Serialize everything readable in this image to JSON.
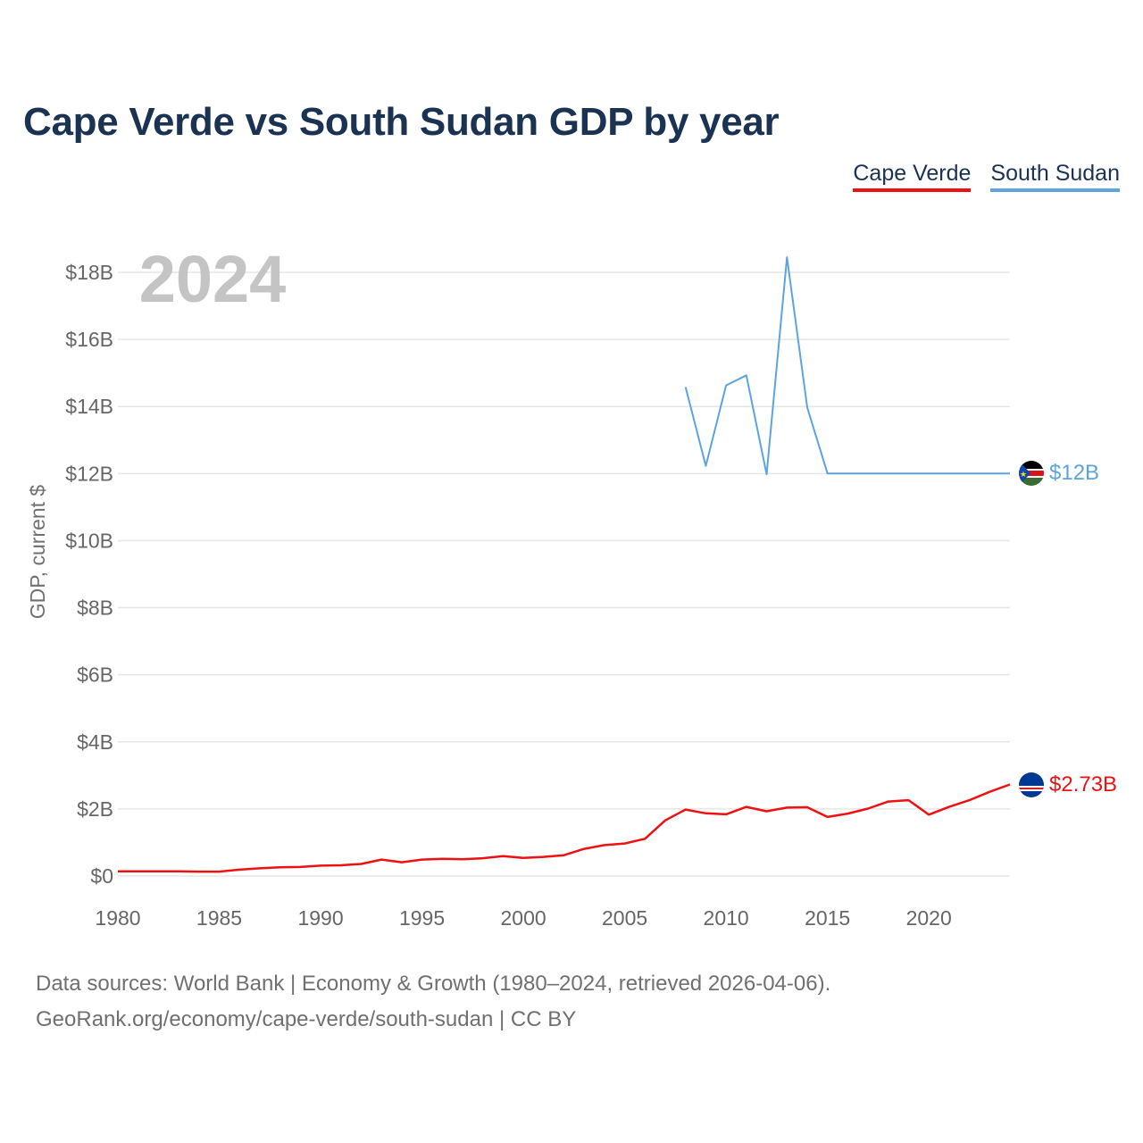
{
  "title": "Cape Verde vs South Sudan GDP by year",
  "legend": [
    {
      "name": "Cape Verde",
      "color": "#ee1111"
    },
    {
      "name": "South Sudan",
      "color": "#5ba4e0"
    }
  ],
  "year_label": "2024",
  "ylabel": "GDP, current $",
  "footer": {
    "line1": "Data sources: World Bank | Economy & Growth (1980–2024, retrieved 2026-04-06).",
    "line2": "GeoRank.org/economy/cape-verde/south-sudan | CC BY"
  },
  "chart_data": {
    "type": "line",
    "title": "Cape Verde vs South Sudan GDP by year",
    "xlabel": "",
    "ylabel": "GDP, current $",
    "xlim": [
      1980,
      2024
    ],
    "ylim": [
      0,
      18
    ],
    "y_unit": "billion USD",
    "x_ticks": [
      1980,
      1985,
      1990,
      1995,
      2000,
      2005,
      2010,
      2015,
      2020
    ],
    "y_ticks": [
      {
        "value": 0,
        "label": "$0"
      },
      {
        "value": 2,
        "label": "$2B"
      },
      {
        "value": 4,
        "label": "$4B"
      },
      {
        "value": 6,
        "label": "$6B"
      },
      {
        "value": 8,
        "label": "$8B"
      },
      {
        "value": 10,
        "label": "$10B"
      },
      {
        "value": 12,
        "label": "$12B"
      },
      {
        "value": 14,
        "label": "$14B"
      },
      {
        "value": 16,
        "label": "$16B"
      },
      {
        "value": 18,
        "label": "$18B"
      }
    ],
    "grid": true,
    "series": [
      {
        "name": "Cape Verde",
        "color": "#ee1111",
        "end_label": "$2.73B",
        "flag": "cape-verde-flag-icon",
        "x": [
          1980,
          1981,
          1982,
          1983,
          1984,
          1985,
          1986,
          1987,
          1988,
          1989,
          1990,
          1991,
          1992,
          1993,
          1994,
          1995,
          1996,
          1997,
          1998,
          1999,
          2000,
          2001,
          2002,
          2003,
          2004,
          2005,
          2006,
          2007,
          2008,
          2009,
          2010,
          2011,
          2012,
          2013,
          2014,
          2015,
          2016,
          2017,
          2018,
          2019,
          2020,
          2021,
          2022,
          2023,
          2024
        ],
        "values": [
          0.14,
          0.14,
          0.14,
          0.14,
          0.13,
          0.13,
          0.19,
          0.23,
          0.26,
          0.27,
          0.31,
          0.32,
          0.36,
          0.49,
          0.41,
          0.49,
          0.51,
          0.5,
          0.53,
          0.59,
          0.54,
          0.57,
          0.62,
          0.81,
          0.92,
          0.97,
          1.11,
          1.66,
          1.98,
          1.87,
          1.84,
          2.06,
          1.93,
          2.04,
          2.05,
          1.76,
          1.86,
          2.01,
          2.22,
          2.26,
          1.83,
          2.06,
          2.26,
          2.51,
          2.73
        ]
      },
      {
        "name": "South Sudan",
        "color": "#5ba4e0",
        "end_label": "$12B",
        "flag": "south-sudan-flag-icon",
        "x": [
          2008,
          2009,
          2010,
          2011,
          2012,
          2013,
          2014,
          2015,
          2016,
          2017,
          2018,
          2019,
          2020,
          2021,
          2022,
          2023,
          2024
        ],
        "values": [
          14.58,
          12.23,
          14.63,
          14.93,
          11.98,
          18.45,
          13.97,
          12.0,
          12.0,
          12.0,
          12.0,
          12.0,
          12.0,
          12.0,
          12.0,
          12.0,
          12.0
        ]
      }
    ]
  }
}
